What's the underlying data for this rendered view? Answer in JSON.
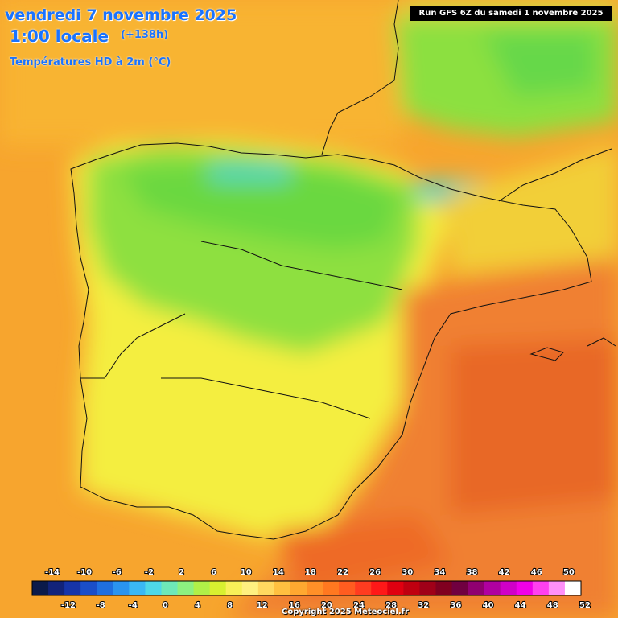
{
  "header": {
    "date": "vendredi 7 novembre 2025",
    "time": "1:00 locale",
    "offset": "(+138h)",
    "parameter": "Températures HD à 2m (°C)",
    "run": "Run GFS 6Z du samedi 1 novembre 2025"
  },
  "footer": {
    "copyright": "Copyright 2025 Meteociel.fr"
  },
  "legend": {
    "top_labels": [
      "-14",
      "-10",
      "-6",
      "-2",
      "2",
      "6",
      "10",
      "14",
      "18",
      "22",
      "26",
      "30",
      "34",
      "38",
      "42",
      "46",
      "50"
    ],
    "bottom_labels": [
      "-12",
      "-8",
      "-4",
      "0",
      "4",
      "8",
      "12",
      "16",
      "20",
      "24",
      "28",
      "32",
      "36",
      "40",
      "44",
      "48",
      "52"
    ],
    "colors": [
      "#0b1a4a",
      "#12237a",
      "#1634a8",
      "#1a4ec8",
      "#1f6fe0",
      "#2a94f0",
      "#3ab8f5",
      "#4ed8e8",
      "#6ee8b8",
      "#8cf080",
      "#b0f048",
      "#d8f030",
      "#f8f058",
      "#fff080",
      "#ffd860",
      "#ffc040",
      "#ffa830",
      "#ff9028",
      "#ff7820",
      "#ff5c20",
      "#ff3c20",
      "#ff1818",
      "#e00010",
      "#c00010",
      "#a00018",
      "#800020",
      "#700040",
      "#900070",
      "#b000a0",
      "#d000c8",
      "#f000e8",
      "#ff40f0",
      "#ff90f8",
      "#ffffff"
    ]
  },
  "map_region": "Péninsule Ibérique"
}
